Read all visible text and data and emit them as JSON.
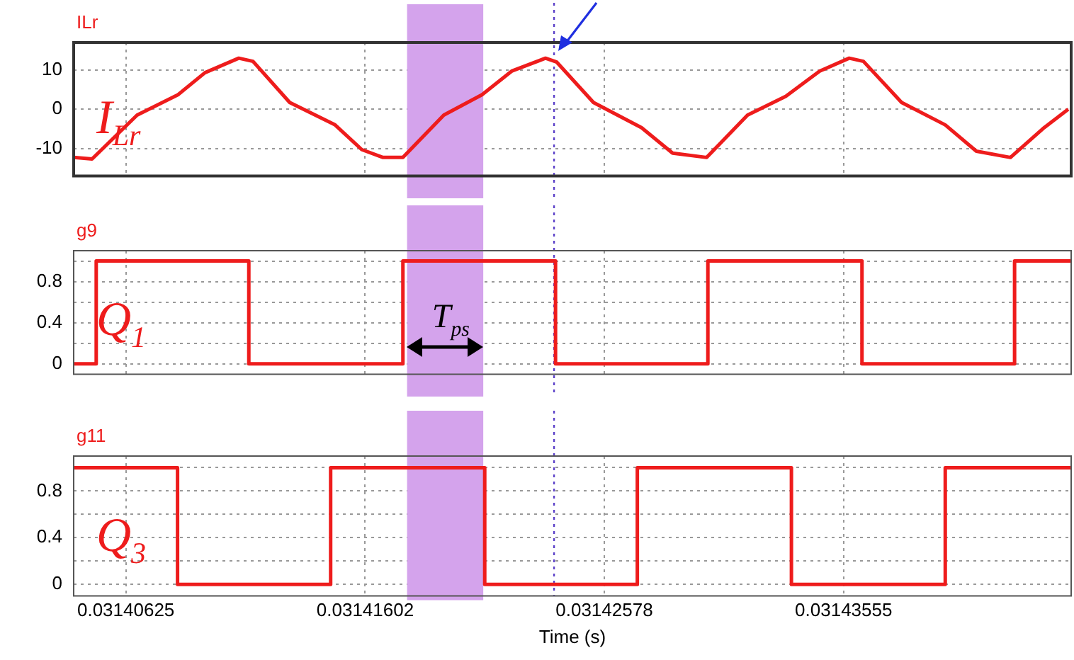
{
  "chart_data": [
    {
      "type": "line",
      "title": "ILr",
      "xlim": [
        0.03140412,
        0.03144484
      ],
      "ylim": [
        -17,
        17
      ],
      "yticks": [
        -10,
        0,
        10
      ],
      "xticks": [
        0.03140625,
        0.03141602,
        0.03142578,
        0.03143555
      ],
      "tick_labels": "y",
      "grid": true,
      "legend": false,
      "marker": "none",
      "series": [
        {
          "name": "I$_{Lr}$",
          "color": "#ee1c1c",
          "x": [
            0.03140412,
            0.03140487,
            0.03140671,
            0.03140838,
            0.03140948,
            0.03141086,
            0.03141144,
            0.03141294,
            0.03141479,
            0.03141588,
            0.03141675,
            0.03141756,
            0.03141923,
            0.03142079,
            0.031422,
            0.03142338,
            0.03142384,
            0.03142534,
            0.0314273,
            0.03142857,
            0.03142996,
            0.03143163,
            0.03143319,
            0.03143457,
            0.03143578,
            0.03143636,
            0.03143792,
            0.0314397,
            0.03144097,
            0.03144236,
            0.03144374,
            0.03144472
          ],
          "values": [
            -12.3,
            -12.7,
            -1.5,
            3.7,
            9.3,
            13,
            12.2,
            1.7,
            -4,
            -10.3,
            -12.3,
            -12.3,
            -1.5,
            3.7,
            9.7,
            13,
            12,
            1.7,
            -4.7,
            -11.2,
            -12.3,
            -1.5,
            3.3,
            9.7,
            13,
            12.2,
            1.7,
            -4,
            -10.7,
            -12.3,
            -4.7,
            0
          ]
        }
      ],
      "bands": [
        {
          "axis": "x",
          "from": 0.03141773,
          "to": 0.03142084,
          "color": "#d4a3ec"
        }
      ],
      "ref_lines": [
        {
          "axis": "x",
          "value": 0.03142373,
          "color": "#5a3fc8",
          "line_style": "dotted"
        }
      ]
    },
    {
      "type": "step",
      "title": "g9",
      "xlim": [
        0.03140412,
        0.03144484
      ],
      "ylim": [
        -0.1,
        1.1
      ],
      "yticks": [
        0,
        {
          "value": 0.2,
          "label": null
        },
        0.4,
        {
          "value": 0.6,
          "label": null
        },
        0.8,
        {
          "value": 1,
          "label": null
        }
      ],
      "xticks": [
        0.03140625,
        0.03141602,
        0.03142578,
        0.03143555
      ],
      "tick_labels": "y",
      "grid": true,
      "legend": false,
      "marker": "none",
      "series": [
        {
          "name": "Q$_{1}$",
          "color": "#ee1c1c",
          "x": [
            0.03140412,
            0.03140504,
            0.03141127,
            0.03141756,
            0.03142379,
            0.03143001,
            0.0314363,
            0.03144253,
            0.03144484
          ],
          "values": [
            0,
            1,
            0,
            1,
            0,
            1,
            0,
            1,
            1
          ]
        }
      ],
      "annotations": [
        "T$_{ps}$"
      ],
      "bands": [
        {
          "axis": "x",
          "from": 0.03141773,
          "to": 0.03142084,
          "color": "#d4a3ec"
        }
      ],
      "ref_lines": [
        {
          "axis": "x",
          "value": 0.03142373,
          "color": "#5a3fc8",
          "line_style": "dotted"
        }
      ]
    },
    {
      "type": "step",
      "title": "g11",
      "xlabel": "Time (s)",
      "xlim": [
        0.03140412,
        0.03144484
      ],
      "ylim": [
        -0.1,
        1.1
      ],
      "yticks": [
        0,
        {
          "value": 0.2,
          "label": null
        },
        0.4,
        {
          "value": 0.6,
          "label": null
        },
        0.8,
        {
          "value": 1,
          "label": null
        }
      ],
      "xticks": [
        0.03140625,
        0.03141602,
        0.03142578,
        0.03143555
      ],
      "grid": true,
      "legend": false,
      "marker": "none",
      "series": [
        {
          "name": "Q$_{3}$",
          "color": "#ee1c1c",
          "x": [
            0.03140412,
            0.03140836,
            0.03141461,
            0.0314209,
            0.03142713,
            0.03143342,
            0.0314397,
            0.03144484
          ],
          "values": [
            1,
            0,
            1,
            0,
            1,
            0,
            1,
            1
          ]
        }
      ],
      "bands": [
        {
          "axis": "x",
          "from": 0.03141773,
          "to": 0.03142084,
          "color": "#d4a3ec"
        }
      ],
      "ref_lines": [
        {
          "axis": "x",
          "value": 0.03142373,
          "color": "#5a3fc8",
          "line_style": "dotted"
        }
      ]
    }
  ]
}
